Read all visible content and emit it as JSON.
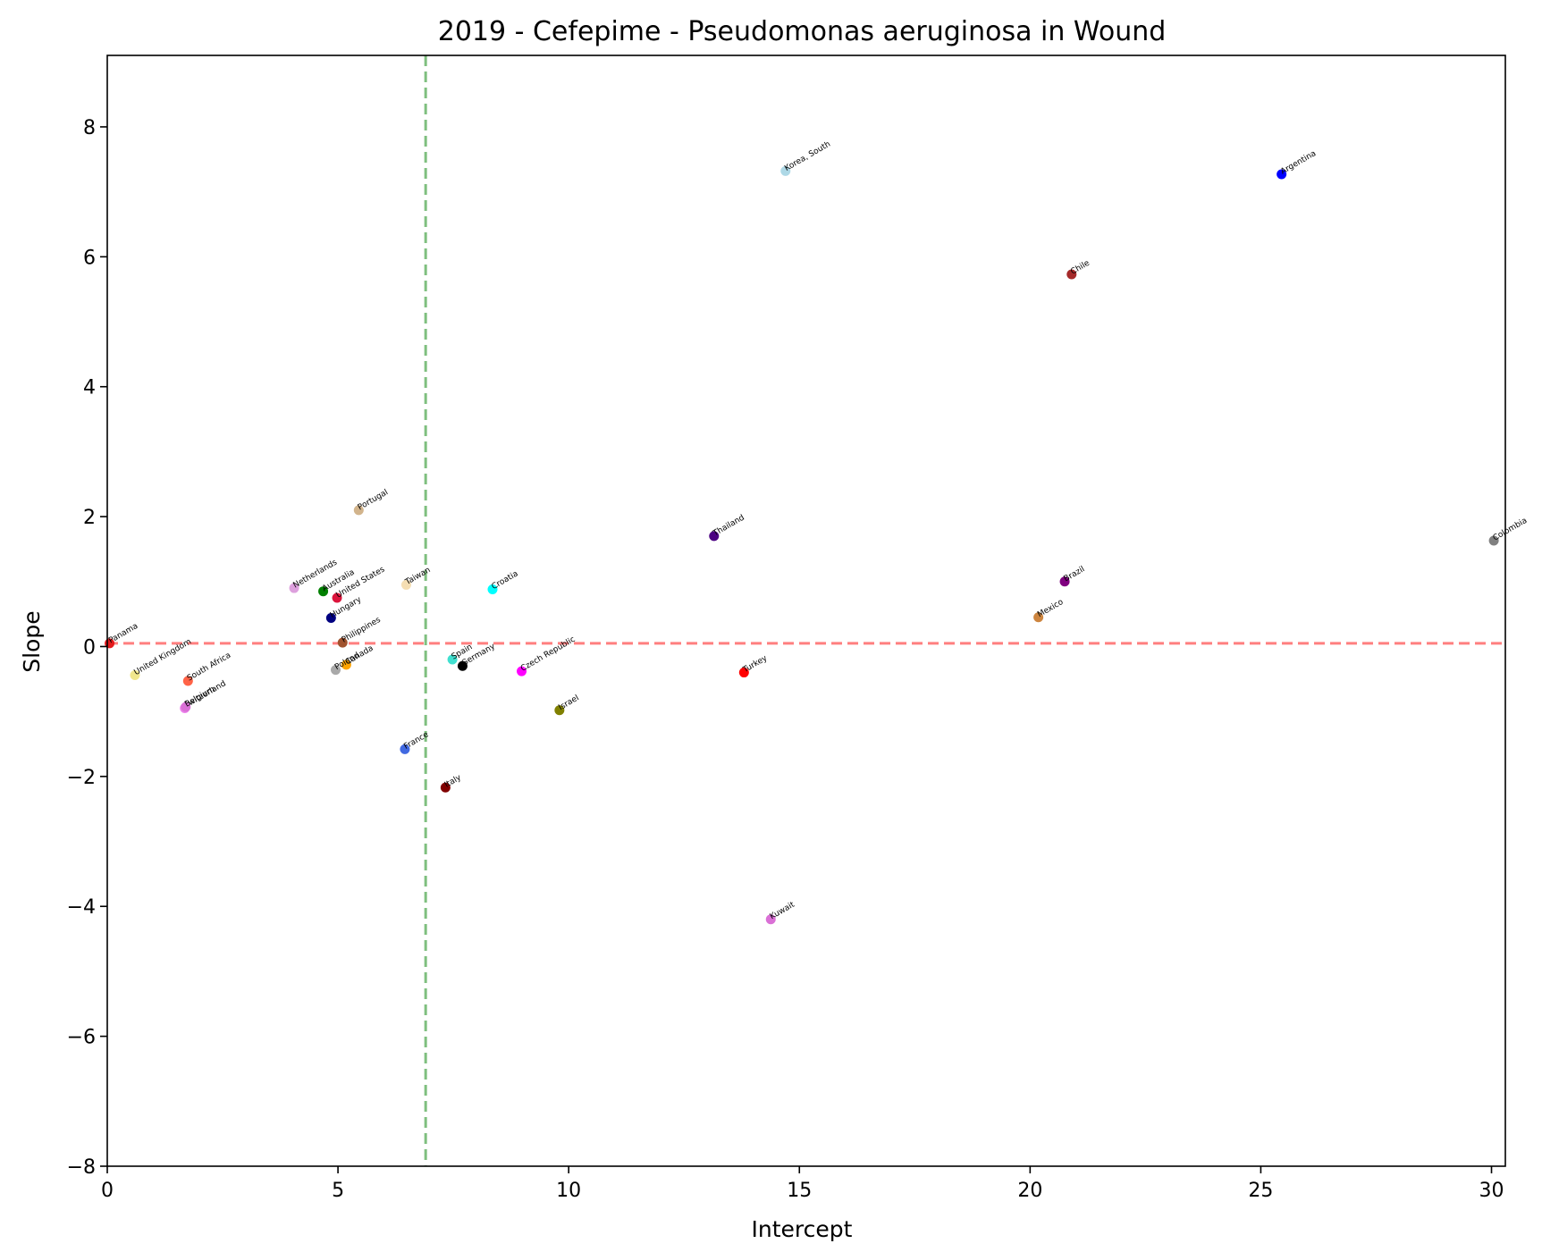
{
  "chart_data": {
    "type": "scatter",
    "title": "2019 - Cefepime - Pseudomonas aeruginosa in Wound",
    "xlabel": "Intercept",
    "ylabel": "Slope",
    "xlim": [
      0,
      30.3
    ],
    "ylim": [
      -8.0,
      9.1
    ],
    "xticks": [
      0,
      5,
      10,
      15,
      20,
      25,
      30
    ],
    "yticks": [
      -8,
      -6,
      -4,
      -2,
      0,
      2,
      4,
      6,
      8
    ],
    "xtick_labels": [
      "0",
      "5",
      "10",
      "15",
      "20",
      "25",
      "30"
    ],
    "ytick_labels": [
      "−8",
      "−6",
      "−4",
      "−2",
      "0",
      "2",
      "4",
      "6",
      "8"
    ],
    "grid": false,
    "reference_lines": [
      {
        "orientation": "horizontal",
        "value": 0.05,
        "color": "#ff7f7f",
        "style": "dashed"
      },
      {
        "orientation": "vertical",
        "value": 6.9,
        "color": "#7fbf7f",
        "style": "dashed"
      }
    ],
    "points": [
      {
        "label": "Panama",
        "x": 0.05,
        "y": 0.05,
        "color": "#e41a1c"
      },
      {
        "label": "United Kingdom",
        "x": 0.6,
        "y": -0.44,
        "color": "#f0e68c"
      },
      {
        "label": "South Africa",
        "x": 1.75,
        "y": -0.53,
        "color": "#ff6347"
      },
      {
        "label": "Switzerland",
        "x": 1.68,
        "y": -0.95,
        "color": "#ee82ee"
      },
      {
        "label": "Belgium",
        "x": 1.7,
        "y": -0.93,
        "color": "#da70d6"
      },
      {
        "label": "Netherlands",
        "x": 4.05,
        "y": 0.9,
        "color": "#dda0dd"
      },
      {
        "label": "Australia",
        "x": 4.68,
        "y": 0.85,
        "color": "#008000"
      },
      {
        "label": "United States",
        "x": 4.98,
        "y": 0.75,
        "color": "#dc143c"
      },
      {
        "label": "Hungary",
        "x": 4.85,
        "y": 0.44,
        "color": "#000080"
      },
      {
        "label": "Philippines",
        "x": 5.1,
        "y": 0.06,
        "color": "#a0522d"
      },
      {
        "label": "Canada",
        "x": 5.18,
        "y": -0.28,
        "color": "#ffa500"
      },
      {
        "label": "Poland",
        "x": 4.95,
        "y": -0.36,
        "color": "#a9a9a9"
      },
      {
        "label": "Portugal",
        "x": 5.45,
        "y": 2.1,
        "color": "#d2b48c"
      },
      {
        "label": "Taiwan",
        "x": 6.48,
        "y": 0.95,
        "color": "#f5deb3"
      },
      {
        "label": "France",
        "x": 6.45,
        "y": -1.58,
        "color": "#4169e1"
      },
      {
        "label": "Italy",
        "x": 7.33,
        "y": -2.17,
        "color": "#800000"
      },
      {
        "label": "Spain",
        "x": 7.48,
        "y": -0.2,
        "color": "#40e0d0"
      },
      {
        "label": "Germany",
        "x": 7.7,
        "y": -0.3,
        "color": "#000000"
      },
      {
        "label": "Croatia",
        "x": 8.35,
        "y": 0.88,
        "color": "#00ffff"
      },
      {
        "label": "Czech Republic",
        "x": 8.98,
        "y": -0.38,
        "color": "#ff00ff"
      },
      {
        "label": "Israel",
        "x": 9.8,
        "y": -0.98,
        "color": "#808000"
      },
      {
        "label": "Thailand",
        "x": 13.15,
        "y": 1.7,
        "color": "#4b0082"
      },
      {
        "label": "Turkey",
        "x": 13.8,
        "y": -0.4,
        "color": "#ff0000"
      },
      {
        "label": "Kuwait",
        "x": 14.38,
        "y": -4.2,
        "color": "#da70d6"
      },
      {
        "label": "Korea, South",
        "x": 14.7,
        "y": 7.32,
        "color": "#add8e6"
      },
      {
        "label": "Mexico",
        "x": 20.18,
        "y": 0.45,
        "color": "#cd853f"
      },
      {
        "label": "Brazil",
        "x": 20.75,
        "y": 1.0,
        "color": "#800080"
      },
      {
        "label": "Chile",
        "x": 20.9,
        "y": 5.73,
        "color": "#a52a2a"
      },
      {
        "label": "Argentina",
        "x": 25.45,
        "y": 7.27,
        "color": "#0000ff"
      },
      {
        "label": "Colombia",
        "x": 30.05,
        "y": 1.63,
        "color": "#808080"
      }
    ]
  }
}
